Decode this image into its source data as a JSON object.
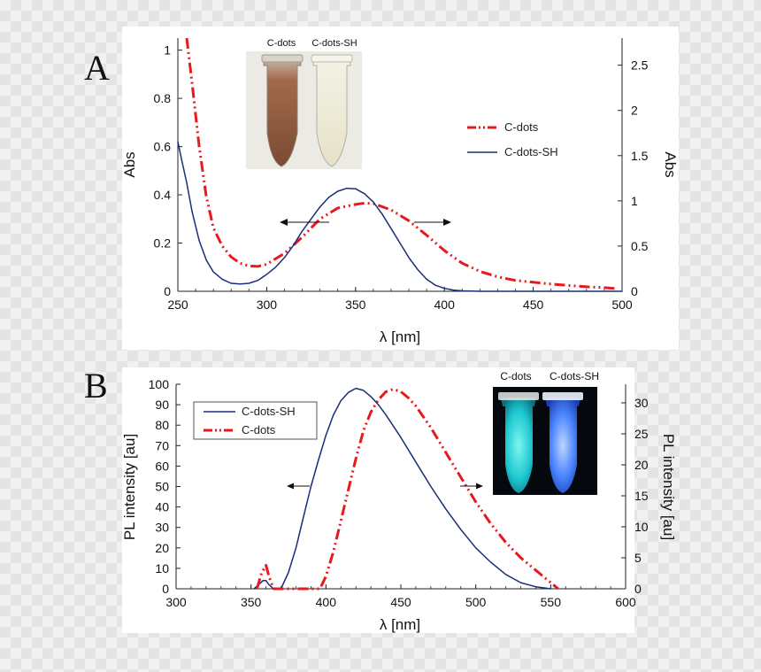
{
  "chart_data": [
    {
      "type": "line",
      "panel_label": "A",
      "xlabel": "λ [nm]",
      "ylabel_left": "Abs",
      "ylabel_right": "Abs",
      "xlim": [
        250,
        500
      ],
      "ylim_left": [
        0,
        1.05
      ],
      "ylim_right": [
        0,
        2.8
      ],
      "x_ticks": [
        "250",
        "300",
        "350",
        "400",
        "450",
        "500"
      ],
      "y_ticks_left": [
        "0",
        "0.2",
        "0.4",
        "0.6",
        "0.8",
        "1"
      ],
      "y_ticks_right": [
        "0",
        "0.5",
        "1",
        "1.5",
        "2",
        "2.5"
      ],
      "legend": [
        "C-dots",
        "C-dots-SH"
      ],
      "inset_labels": [
        "C-dots",
        "C-dots-SH"
      ],
      "series": [
        {
          "name": "C-dots",
          "axis": "right",
          "color": "#e8191d",
          "style": "dash-dot-dot",
          "x": [
            255,
            258,
            262,
            266,
            270,
            275,
            280,
            285,
            290,
            295,
            300,
            310,
            320,
            330,
            340,
            350,
            355,
            360,
            370,
            380,
            390,
            400,
            410,
            420,
            430,
            440,
            450,
            460,
            470,
            480,
            490,
            497
          ],
          "y": [
            2.8,
            2.3,
            1.6,
            1.05,
            0.7,
            0.5,
            0.38,
            0.31,
            0.28,
            0.275,
            0.3,
            0.42,
            0.6,
            0.8,
            0.92,
            0.96,
            0.975,
            0.97,
            0.9,
            0.78,
            0.62,
            0.45,
            0.31,
            0.22,
            0.16,
            0.12,
            0.1,
            0.08,
            0.065,
            0.05,
            0.04,
            0.03
          ]
        },
        {
          "name": "C-dots-SH",
          "axis": "left",
          "color": "#1a2d7a",
          "style": "solid",
          "x": [
            250,
            252,
            255,
            258,
            262,
            266,
            270,
            275,
            280,
            285,
            290,
            295,
            300,
            305,
            310,
            315,
            320,
            325,
            330,
            335,
            340,
            345,
            350,
            355,
            360,
            365,
            370,
            375,
            380,
            385,
            390,
            395,
            400,
            405,
            410,
            420,
            440,
            460,
            480,
            500
          ],
          "y": [
            0.62,
            0.55,
            0.45,
            0.33,
            0.21,
            0.13,
            0.08,
            0.05,
            0.033,
            0.03,
            0.033,
            0.045,
            0.07,
            0.1,
            0.14,
            0.19,
            0.25,
            0.3,
            0.35,
            0.39,
            0.415,
            0.427,
            0.425,
            0.405,
            0.37,
            0.32,
            0.26,
            0.2,
            0.14,
            0.09,
            0.05,
            0.025,
            0.012,
            0.005,
            0.002,
            0,
            0,
            0,
            0,
            0
          ]
        }
      ]
    },
    {
      "type": "line",
      "panel_label": "B",
      "xlabel": "λ [nm]",
      "ylabel_left": "PL intensity [au]",
      "ylabel_right": "PL intensity [au]",
      "xlim": [
        300,
        600
      ],
      "ylim_left": [
        0,
        100
      ],
      "ylim_right": [
        0,
        33
      ],
      "x_ticks": [
        "300",
        "350",
        "400",
        "450",
        "500",
        "550",
        "600"
      ],
      "y_ticks_left": [
        "0",
        "10",
        "20",
        "30",
        "40",
        "50",
        "60",
        "70",
        "80",
        "90",
        "100"
      ],
      "y_ticks_right": [
        "0",
        "5",
        "10",
        "15",
        "20",
        "25",
        "30"
      ],
      "legend": [
        "C-dots-SH",
        "C-dots"
      ],
      "inset_labels": [
        "C-dots",
        "C-dots-SH"
      ],
      "series": [
        {
          "name": "C-dots-SH",
          "axis": "left",
          "color": "#1a2d7a",
          "style": "solid",
          "x": [
            352,
            355,
            358,
            360,
            362,
            365,
            368,
            370,
            375,
            380,
            385,
            390,
            395,
            400,
            405,
            410,
            415,
            420,
            425,
            430,
            435,
            440,
            450,
            460,
            470,
            480,
            490,
            500,
            510,
            520,
            530,
            540,
            550
          ],
          "y": [
            0,
            2,
            4,
            4,
            2,
            0,
            0,
            0,
            8,
            20,
            35,
            50,
            63,
            75,
            85,
            92,
            96,
            98,
            97,
            94,
            90,
            85,
            74,
            62,
            50,
            39,
            29,
            20,
            13,
            7,
            3,
            1,
            0
          ]
        },
        {
          "name": "C-dots",
          "axis": "right",
          "color": "#e8191d",
          "style": "dash-dot-dot",
          "x": [
            354,
            357,
            360,
            362,
            365,
            396,
            400,
            405,
            410,
            415,
            420,
            425,
            430,
            435,
            440,
            445,
            450,
            455,
            460,
            470,
            480,
            490,
            500,
            510,
            520,
            530,
            540,
            550,
            555
          ],
          "y": [
            0,
            2.5,
            3.8,
            2,
            0,
            0,
            2,
            6,
            11,
            16,
            21,
            25.5,
            28.5,
            30.5,
            31.8,
            32.2,
            31.8,
            30.8,
            29.5,
            26,
            22,
            18,
            14,
            10.5,
            7.5,
            5,
            3,
            1,
            0
          ]
        }
      ]
    }
  ]
}
